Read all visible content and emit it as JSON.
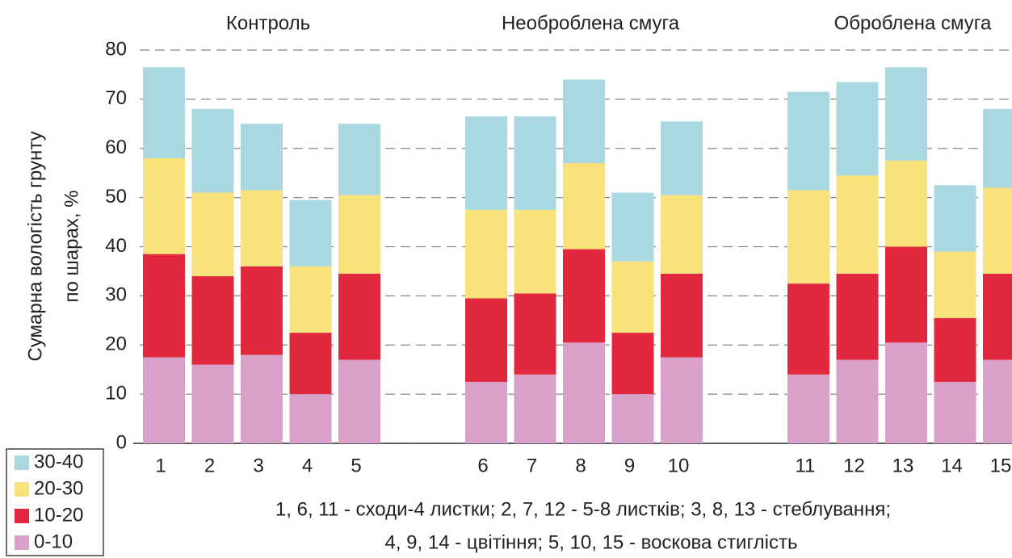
{
  "chart_data": {
    "type": "stacked_bar",
    "y_label": [
      "Сумарна вологість грунту",
      "по шарах, %"
    ],
    "groups": [
      {
        "name": "Контроль",
        "categories": [
          "1",
          "2",
          "3",
          "4",
          "5"
        ]
      },
      {
        "name": "Необроблена смуга",
        "categories": [
          "6",
          "7",
          "8",
          "9",
          "10"
        ]
      },
      {
        "name": "Оброблена смуга",
        "categories": [
          "11",
          "12",
          "13",
          "14",
          "15"
        ]
      }
    ],
    "series": [
      {
        "name": "0-10",
        "color": "#d9a1c9",
        "values": [
          17.5,
          16,
          18,
          10,
          17,
          12.5,
          14,
          20.5,
          10,
          17.5,
          14,
          17,
          20.5,
          12.5,
          17
        ]
      },
      {
        "name": "10-20",
        "color": "#e2283d",
        "values": [
          21,
          18,
          18,
          12.5,
          17.5,
          17,
          16.5,
          19,
          12.5,
          17,
          18.5,
          17.5,
          19.5,
          13,
          17.5
        ]
      },
      {
        "name": "20-30",
        "color": "#f9e17c",
        "values": [
          19.5,
          17,
          15.5,
          13.5,
          16,
          18,
          17,
          17.5,
          14.5,
          16,
          19,
          20,
          17.5,
          13.5,
          17.5
        ]
      },
      {
        "name": "30-40",
        "color": "#a9d8e1",
        "values": [
          18.5,
          17,
          13.5,
          13.5,
          14.5,
          19,
          19,
          17,
          14,
          15,
          20,
          19,
          19,
          13.5,
          16
        ]
      }
    ],
    "ylim": [
      0,
      80
    ],
    "yticks": [
      0,
      10,
      20,
      30,
      40,
      50,
      60,
      70,
      80
    ],
    "grid": true,
    "notes": [
      "1, 6, 11 - сходи-4 листки;   2, 7, 12 - 5-8 листків;   3, 8, 13 - стеблування;",
      "4, 9, 14 - цвітіння;   5, 10, 15 - воскова стиглість"
    ]
  }
}
